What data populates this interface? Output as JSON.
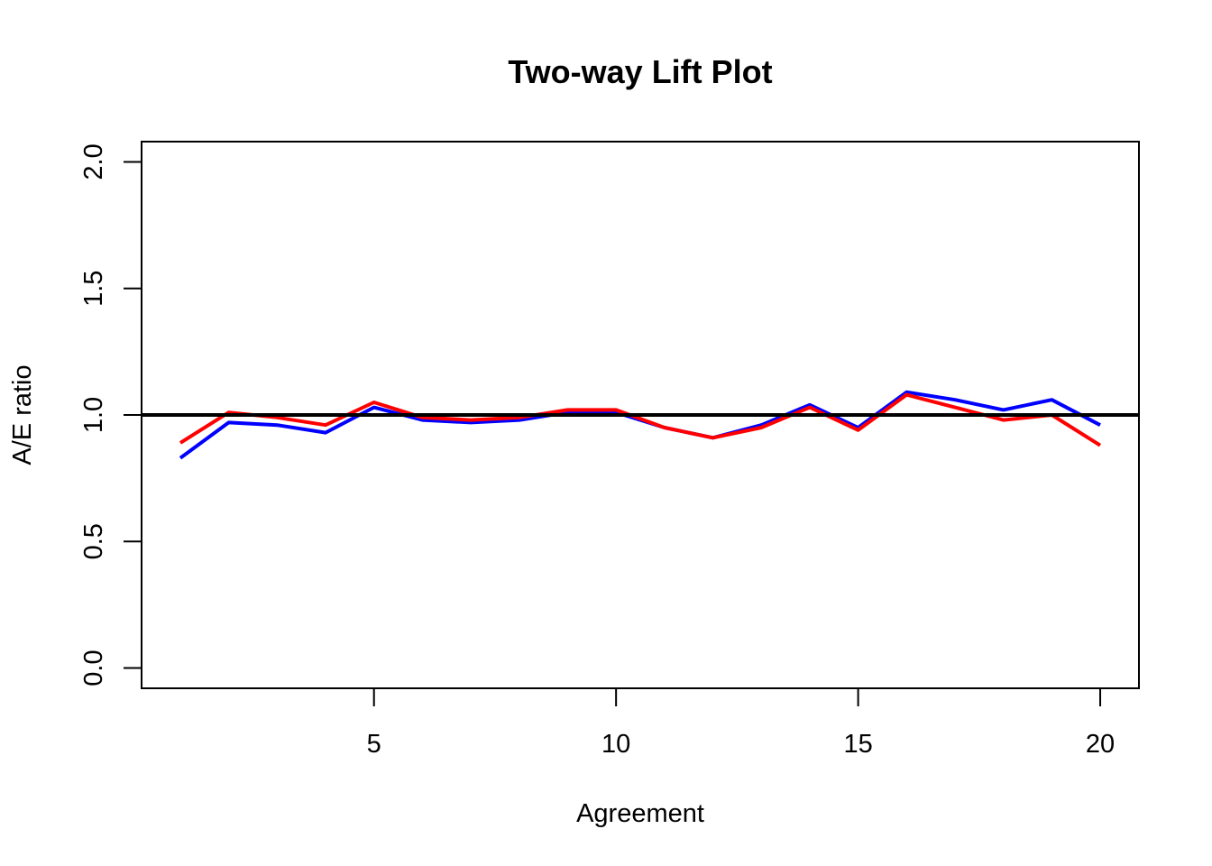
{
  "chart_data": {
    "type": "line",
    "title": "Two-way Lift Plot",
    "xlabel": "Agreement",
    "ylabel": "A/E ratio",
    "xlim": [
      0.2,
      20.8
    ],
    "ylim": [
      -0.08,
      2.08
    ],
    "xticks": [
      5,
      10,
      15,
      20
    ],
    "yticks": [
      0.0,
      0.5,
      1.0,
      1.5,
      2.0
    ],
    "xtick_labels": [
      "5",
      "10",
      "15",
      "20"
    ],
    "ytick_labels": [
      "0.0",
      "0.5",
      "1.0",
      "1.5",
      "2.0"
    ],
    "grid": false,
    "reference_line": {
      "y": 1.0,
      "color": "#000000"
    },
    "x": [
      1,
      2,
      3,
      4,
      5,
      6,
      7,
      8,
      9,
      10,
      11,
      12,
      13,
      14,
      15,
      16,
      17,
      18,
      19,
      20
    ],
    "series": [
      {
        "color": "#0000ff",
        "values": [
          0.83,
          0.97,
          0.96,
          0.93,
          1.03,
          0.98,
          0.97,
          0.98,
          1.01,
          1.01,
          0.95,
          0.91,
          0.96,
          1.04,
          0.95,
          1.09,
          1.06,
          1.02,
          1.06,
          0.96
        ]
      },
      {
        "color": "#ff0000",
        "values": [
          0.89,
          1.01,
          0.99,
          0.96,
          1.05,
          0.99,
          0.98,
          0.99,
          1.02,
          1.02,
          0.95,
          0.91,
          0.95,
          1.03,
          0.94,
          1.08,
          1.03,
          0.98,
          1.0,
          0.88
        ]
      }
    ]
  }
}
